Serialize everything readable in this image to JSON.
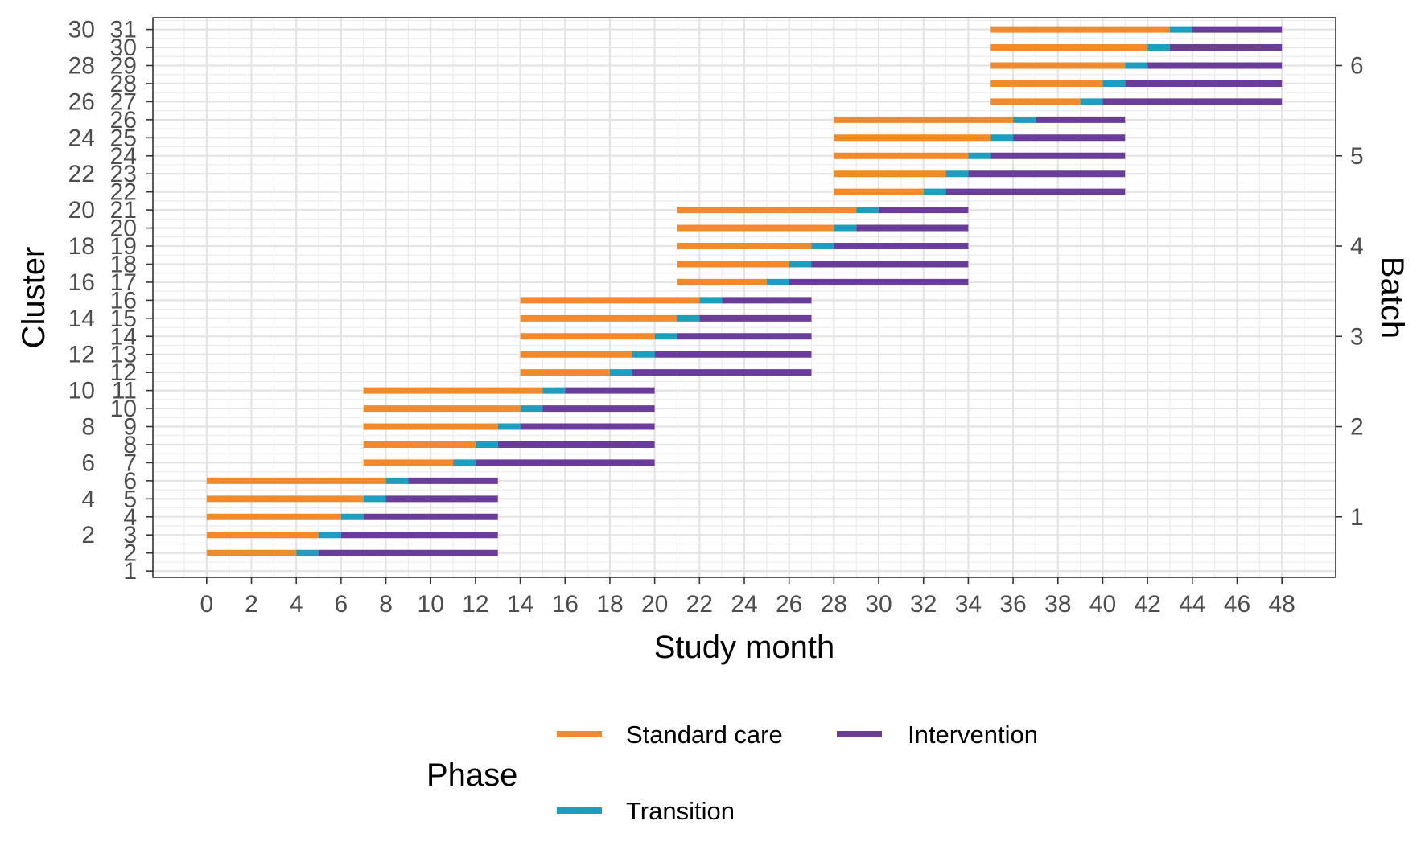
{
  "chart_data": {
    "type": "bar",
    "subtype": "horizontal stacked segments (Gantt-style timeline)",
    "xlabel": "Study month",
    "ylabel": "Cluster",
    "ylabel_right": "Batch",
    "x_ticks": [
      0,
      2,
      4,
      6,
      8,
      10,
      12,
      14,
      16,
      18,
      20,
      22,
      24,
      26,
      28,
      30,
      32,
      34,
      36,
      38,
      40,
      42,
      44,
      46,
      48
    ],
    "xlim": [
      -2.4,
      50.4
    ],
    "ylim": [
      -0.35,
      30.65
    ],
    "y_ticks_left": [
      1,
      2,
      3,
      4,
      5,
      6,
      7,
      8,
      9,
      10,
      11,
      12,
      13,
      14,
      15,
      16,
      17,
      18,
      19,
      20,
      21,
      22,
      23,
      24,
      25,
      26,
      27,
      28,
      29,
      30,
      31
    ],
    "y_ticks_right": [
      1,
      2,
      3,
      4,
      5,
      6
    ],
    "grid": true,
    "legend": {
      "title": "Phase",
      "position": "bottom",
      "entries": [
        {
          "label": "Standard care",
          "color": "#F28A2B"
        },
        {
          "label": "Intervention",
          "color": "#6A3D9A"
        },
        {
          "label": "Transition",
          "color": "#1E9EBE"
        }
      ]
    },
    "colors": {
      "Standard care": "#F28A2B",
      "Transition": "#1E9EBE",
      "Intervention": "#6A3D9A"
    },
    "series": [
      {
        "row": 1,
        "segments": [
          {
            "phase": "Standard care",
            "start": 0,
            "end": 4
          },
          {
            "phase": "Transition",
            "start": 4,
            "end": 5
          },
          {
            "phase": "Intervention",
            "start": 5,
            "end": 13
          }
        ]
      },
      {
        "row": 2,
        "segments": [
          {
            "phase": "Standard care",
            "start": 0,
            "end": 5
          },
          {
            "phase": "Transition",
            "start": 5,
            "end": 6
          },
          {
            "phase": "Intervention",
            "start": 6,
            "end": 13
          }
        ]
      },
      {
        "row": 3,
        "segments": [
          {
            "phase": "Standard care",
            "start": 0,
            "end": 6
          },
          {
            "phase": "Transition",
            "start": 6,
            "end": 7
          },
          {
            "phase": "Intervention",
            "start": 7,
            "end": 13
          }
        ]
      },
      {
        "row": 4,
        "segments": [
          {
            "phase": "Standard care",
            "start": 0,
            "end": 7
          },
          {
            "phase": "Transition",
            "start": 7,
            "end": 8
          },
          {
            "phase": "Intervention",
            "start": 8,
            "end": 13
          }
        ]
      },
      {
        "row": 5,
        "segments": [
          {
            "phase": "Standard care",
            "start": 0,
            "end": 8
          },
          {
            "phase": "Transition",
            "start": 8,
            "end": 9
          },
          {
            "phase": "Intervention",
            "start": 9,
            "end": 13
          }
        ]
      },
      {
        "row": 6,
        "segments": [
          {
            "phase": "Standard care",
            "start": 7,
            "end": 11
          },
          {
            "phase": "Transition",
            "start": 11,
            "end": 12
          },
          {
            "phase": "Intervention",
            "start": 12,
            "end": 20
          }
        ]
      },
      {
        "row": 7,
        "segments": [
          {
            "phase": "Standard care",
            "start": 7,
            "end": 12
          },
          {
            "phase": "Transition",
            "start": 12,
            "end": 13
          },
          {
            "phase": "Intervention",
            "start": 13,
            "end": 20
          }
        ]
      },
      {
        "row": 8,
        "segments": [
          {
            "phase": "Standard care",
            "start": 7,
            "end": 13
          },
          {
            "phase": "Transition",
            "start": 13,
            "end": 14
          },
          {
            "phase": "Intervention",
            "start": 14,
            "end": 20
          }
        ]
      },
      {
        "row": 9,
        "segments": [
          {
            "phase": "Standard care",
            "start": 7,
            "end": 14
          },
          {
            "phase": "Transition",
            "start": 14,
            "end": 15
          },
          {
            "phase": "Intervention",
            "start": 15,
            "end": 20
          }
        ]
      },
      {
        "row": 10,
        "segments": [
          {
            "phase": "Standard care",
            "start": 7,
            "end": 15
          },
          {
            "phase": "Transition",
            "start": 15,
            "end": 16
          },
          {
            "phase": "Intervention",
            "start": 16,
            "end": 20
          }
        ]
      },
      {
        "row": 11,
        "segments": [
          {
            "phase": "Standard care",
            "start": 14,
            "end": 18
          },
          {
            "phase": "Transition",
            "start": 18,
            "end": 19
          },
          {
            "phase": "Intervention",
            "start": 19,
            "end": 27
          }
        ]
      },
      {
        "row": 12,
        "segments": [
          {
            "phase": "Standard care",
            "start": 14,
            "end": 19
          },
          {
            "phase": "Transition",
            "start": 19,
            "end": 20
          },
          {
            "phase": "Intervention",
            "start": 20,
            "end": 27
          }
        ]
      },
      {
        "row": 13,
        "segments": [
          {
            "phase": "Standard care",
            "start": 14,
            "end": 20
          },
          {
            "phase": "Transition",
            "start": 20,
            "end": 21
          },
          {
            "phase": "Intervention",
            "start": 21,
            "end": 27
          }
        ]
      },
      {
        "row": 14,
        "segments": [
          {
            "phase": "Standard care",
            "start": 14,
            "end": 21
          },
          {
            "phase": "Transition",
            "start": 21,
            "end": 22
          },
          {
            "phase": "Intervention",
            "start": 22,
            "end": 27
          }
        ]
      },
      {
        "row": 15,
        "segments": [
          {
            "phase": "Standard care",
            "start": 14,
            "end": 22
          },
          {
            "phase": "Transition",
            "start": 22,
            "end": 23
          },
          {
            "phase": "Intervention",
            "start": 23,
            "end": 27
          }
        ]
      },
      {
        "row": 16,
        "segments": [
          {
            "phase": "Standard care",
            "start": 21,
            "end": 25
          },
          {
            "phase": "Transition",
            "start": 25,
            "end": 26
          },
          {
            "phase": "Intervention",
            "start": 26,
            "end": 34
          }
        ]
      },
      {
        "row": 17,
        "segments": [
          {
            "phase": "Standard care",
            "start": 21,
            "end": 26
          },
          {
            "phase": "Transition",
            "start": 26,
            "end": 27
          },
          {
            "phase": "Intervention",
            "start": 27,
            "end": 34
          }
        ]
      },
      {
        "row": 18,
        "segments": [
          {
            "phase": "Standard care",
            "start": 21,
            "end": 27
          },
          {
            "phase": "Transition",
            "start": 27,
            "end": 28
          },
          {
            "phase": "Intervention",
            "start": 28,
            "end": 34
          }
        ]
      },
      {
        "row": 19,
        "segments": [
          {
            "phase": "Standard care",
            "start": 21,
            "end": 28
          },
          {
            "phase": "Transition",
            "start": 28,
            "end": 29
          },
          {
            "phase": "Intervention",
            "start": 29,
            "end": 34
          }
        ]
      },
      {
        "row": 20,
        "segments": [
          {
            "phase": "Standard care",
            "start": 21,
            "end": 29
          },
          {
            "phase": "Transition",
            "start": 29,
            "end": 30
          },
          {
            "phase": "Intervention",
            "start": 30,
            "end": 34
          }
        ]
      },
      {
        "row": 21,
        "segments": [
          {
            "phase": "Standard care",
            "start": 28,
            "end": 32
          },
          {
            "phase": "Transition",
            "start": 32,
            "end": 33
          },
          {
            "phase": "Intervention",
            "start": 33,
            "end": 41
          }
        ]
      },
      {
        "row": 22,
        "segments": [
          {
            "phase": "Standard care",
            "start": 28,
            "end": 33
          },
          {
            "phase": "Transition",
            "start": 33,
            "end": 34
          },
          {
            "phase": "Intervention",
            "start": 34,
            "end": 41
          }
        ]
      },
      {
        "row": 23,
        "segments": [
          {
            "phase": "Standard care",
            "start": 28,
            "end": 34
          },
          {
            "phase": "Transition",
            "start": 34,
            "end": 35
          },
          {
            "phase": "Intervention",
            "start": 35,
            "end": 41
          }
        ]
      },
      {
        "row": 24,
        "segments": [
          {
            "phase": "Standard care",
            "start": 28,
            "end": 35
          },
          {
            "phase": "Transition",
            "start": 35,
            "end": 36
          },
          {
            "phase": "Intervention",
            "start": 36,
            "end": 41
          }
        ]
      },
      {
        "row": 25,
        "segments": [
          {
            "phase": "Standard care",
            "start": 28,
            "end": 36
          },
          {
            "phase": "Transition",
            "start": 36,
            "end": 37
          },
          {
            "phase": "Intervention",
            "start": 37,
            "end": 41
          }
        ]
      },
      {
        "row": 26,
        "segments": [
          {
            "phase": "Standard care",
            "start": 35,
            "end": 39
          },
          {
            "phase": "Transition",
            "start": 39,
            "end": 40
          },
          {
            "phase": "Intervention",
            "start": 40,
            "end": 48
          }
        ]
      },
      {
        "row": 27,
        "segments": [
          {
            "phase": "Standard care",
            "start": 35,
            "end": 40
          },
          {
            "phase": "Transition",
            "start": 40,
            "end": 41
          },
          {
            "phase": "Intervention",
            "start": 41,
            "end": 48
          }
        ]
      },
      {
        "row": 28,
        "segments": [
          {
            "phase": "Standard care",
            "start": 35,
            "end": 41
          },
          {
            "phase": "Transition",
            "start": 41,
            "end": 42
          },
          {
            "phase": "Intervention",
            "start": 42,
            "end": 48
          }
        ]
      },
      {
        "row": 29,
        "segments": [
          {
            "phase": "Standard care",
            "start": 35,
            "end": 42
          },
          {
            "phase": "Transition",
            "start": 42,
            "end": 43
          },
          {
            "phase": "Intervention",
            "start": 43,
            "end": 48
          }
        ]
      },
      {
        "row": 30,
        "segments": [
          {
            "phase": "Standard care",
            "start": 35,
            "end": 43
          },
          {
            "phase": "Transition",
            "start": 43,
            "end": 44
          },
          {
            "phase": "Intervention",
            "start": 44,
            "end": 48
          }
        ]
      }
    ]
  }
}
